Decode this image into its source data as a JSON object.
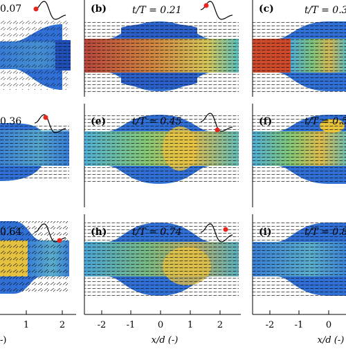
{
  "figure": {
    "panels": [
      {
        "letter": "",
        "label": "0.07",
        "phase": 0.07
      },
      {
        "letter": "(b)",
        "label": "t/T = 0.21",
        "phase": 0.21
      },
      {
        "letter": "(c)",
        "label": "t/T = 0.3",
        "phase": 0.3
      },
      {
        "letter": "",
        "label": "0.36",
        "phase": 0.36
      },
      {
        "letter": "(e)",
        "label": "t/T = 0.45",
        "phase": 0.45
      },
      {
        "letter": "(f)",
        "label": "t/T = 0.5",
        "phase": 0.5
      },
      {
        "letter": "",
        "label": "0.64",
        "phase": 0.64
      },
      {
        "letter": "(h)",
        "label": "t/T = 0.74",
        "phase": 0.74
      },
      {
        "letter": "(i)",
        "label": "t/T = 0.8",
        "phase": 0.8
      }
    ],
    "x_ticks": {
      "left": [
        "1",
        "2"
      ],
      "middle": [
        "-2",
        "-1",
        "0",
        "1",
        "2"
      ],
      "right": [
        "-2",
        "-1",
        "0"
      ]
    },
    "xlabel": "x/d (-)",
    "xlabel_left_fragment": "-)",
    "colors": {
      "stenosis_fill": "#2f6fd6",
      "jet_hot": "#d9482a",
      "jet_warm": "#f2c23b",
      "jet_cool": "#59c7b0",
      "vector": "#0a0a0a",
      "marker": "#e8261e"
    }
  }
}
